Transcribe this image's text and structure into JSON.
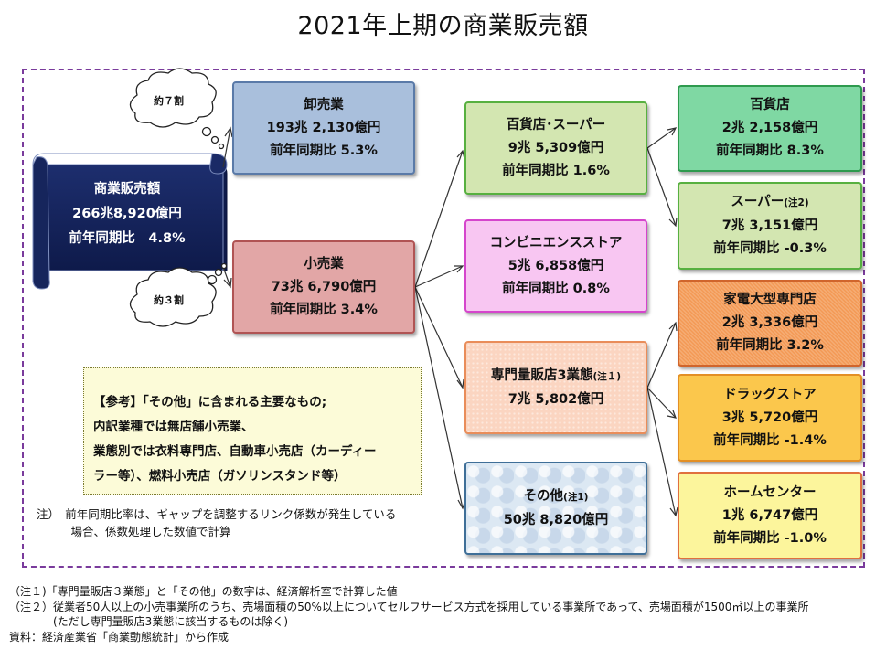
{
  "title": "2021年上期の商業販売額",
  "total": {
    "label": "商業販売額",
    "value": "266兆8,920億円",
    "yoy": "前年同期比　4.8%"
  },
  "clouds": {
    "upper": "約７割",
    "lower": "約３割"
  },
  "wholesale": {
    "label": "卸売業",
    "value": "193兆 2,130億円",
    "yoy": "前年同期比 5.3%"
  },
  "retail": {
    "label": "小売業",
    "value": "73兆 6,790億円",
    "yoy": "前年同期比 3.4%"
  },
  "middle": {
    "dept_super": {
      "label": "百貨店･スーパー",
      "value": "9兆 5,309億円",
      "yoy": "前年同期比 1.6%"
    },
    "convenience": {
      "label": "コンビニエンスストア",
      "value": "5兆 6,858億円",
      "yoy": "前年同期比 0.8%"
    },
    "specialty": {
      "label": "専門量販店3業態",
      "note": "(注１)",
      "value": "7兆 5,802億円"
    },
    "other": {
      "label": "その他",
      "note": "(注1)",
      "value": "50兆 8,820億円"
    }
  },
  "right": {
    "dept": {
      "label": "百貨店",
      "value": "2兆 2,158億円",
      "yoy": "前年同期比 8.3%"
    },
    "super": {
      "label": "スーパー",
      "note": "(注2)",
      "value": "7兆 3,151億円",
      "yoy": "前年同期比 -0.3%"
    },
    "appliance": {
      "label": "家電大型専門店",
      "value": "2兆 3,336億円",
      "yoy": "前年同期比 3.2%"
    },
    "drugstore": {
      "label": "ドラッグストア",
      "value": "3兆 5,720億円",
      "yoy": "前年同期比 -1.4%"
    },
    "homecenter": {
      "label": "ホームセンター",
      "value": "1兆 6,747億円",
      "yoy": "前年同期比 -1.0%"
    }
  },
  "reference": {
    "line1": "【参考】「その他」に含まれる主要なもの;",
    "line2": "内訳業種では無店舗小売業、",
    "line3": "業態別では衣料専門店、自動車小売店（カーディー",
    "line4": "ラー等）、燃料小売店（ガソリンスタンド等）"
  },
  "note": {
    "line1": "注）　前年同期比率は、ギャップを調整するリンク係数が発生している",
    "line2": "　　　場合、係数処理した数値で計算"
  },
  "footer": {
    "line1": "（注１)「専門量販店３業態」と「その他」の数字は、経済解析室で計算した値",
    "line2": "（注２）従業者50人以上の小売事業所のうち、売場面積の50%以上についてセルフサービス方式を採用している事業所であって、売場面積が1500㎡以上の事業所",
    "line3": "　　　　(ただし専門量販店3業態に該当するものは除く)",
    "line4": "資料：経済産業省「商業動態統計」から作成"
  }
}
